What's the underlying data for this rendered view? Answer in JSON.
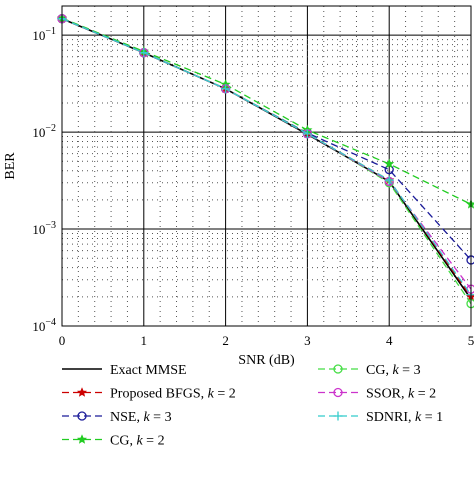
{
  "chart_data": {
    "type": "line",
    "xlabel": "SNR (dB)",
    "ylabel": "BER",
    "x_ticks": [
      "0",
      "1",
      "2",
      "3",
      "4",
      "5"
    ],
    "y_ticks": [
      {
        "base": "10",
        "exp": "−1",
        "value": 0.1
      },
      {
        "base": "10",
        "exp": "−2",
        "value": 0.01
      },
      {
        "base": "10",
        "exp": "−3",
        "value": 0.001
      },
      {
        "base": "10",
        "exp": "−4",
        "value": 0.0001
      }
    ],
    "xlim": [
      0,
      5
    ],
    "ylim": [
      0.0001,
      0.2
    ],
    "y_scale": "log",
    "grid": true,
    "legend_position": "bottom, two columns",
    "x": [
      0,
      1,
      2,
      3,
      4,
      5
    ],
    "series": [
      {
        "name": "Exact MMSE",
        "k": "",
        "color": "#000000",
        "dash": "solid",
        "marker": "none",
        "values": [
          0.148,
          0.066,
          0.028,
          0.0095,
          0.0031,
          0.00019
        ]
      },
      {
        "name": "Proposed BFGS, ",
        "k": "2",
        "color": "#cc0000",
        "dash": "dashed",
        "marker": "star",
        "values": [
          0.148,
          0.066,
          0.028,
          0.0096,
          0.0032,
          0.0002
        ]
      },
      {
        "name": "NSE, ",
        "k": "3",
        "color": "#1a1a99",
        "dash": "dashed",
        "marker": "circle",
        "values": [
          0.148,
          0.066,
          0.028,
          0.0098,
          0.0041,
          0.00048
        ]
      },
      {
        "name": "CG, ",
        "k": "2",
        "color": "#22cc22",
        "dash": "dashed",
        "marker": "star",
        "values": [
          0.15,
          0.068,
          0.031,
          0.0105,
          0.0047,
          0.0018
        ]
      },
      {
        "name": "CG, ",
        "k": "3",
        "color": "#44dd44",
        "dash": "dashed",
        "marker": "circle",
        "values": [
          0.148,
          0.066,
          0.028,
          0.0097,
          0.003,
          0.00017
        ]
      },
      {
        "name": "SSOR, ",
        "k": "2",
        "color": "#cc33cc",
        "dash": "dashed",
        "marker": "circle",
        "values": [
          0.148,
          0.066,
          0.028,
          0.0096,
          0.0031,
          0.00024
        ]
      },
      {
        "name": "SDNRI, ",
        "k": "1",
        "color": "#33cccc",
        "dash": "dashed",
        "marker": "plus",
        "values": [
          0.148,
          0.066,
          0.028,
          0.0096,
          0.0032,
          0.00021
        ]
      }
    ]
  }
}
